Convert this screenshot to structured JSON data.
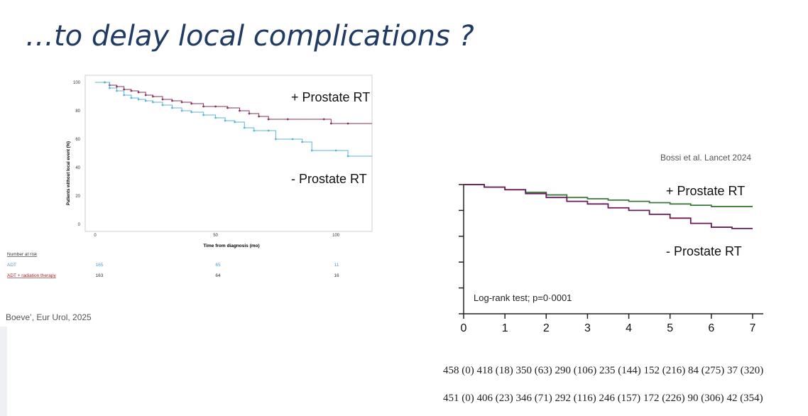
{
  "slide": {
    "title": "…to delay local complications ?",
    "left_citation": "Boeve’, Eur Urol, 2025",
    "right_citation": "Bossi et al. Lancet 2024"
  },
  "chart_data": [
    {
      "type": "line",
      "ylabel": "Patients without local event (%)",
      "xlabel": "Time from diagnosis (mo)",
      "xlim": [
        0,
        115
      ],
      "ylim": [
        0,
        100
      ],
      "x_ticks": [
        "0",
        "50",
        "100"
      ],
      "y_ticks": [
        "0",
        "20",
        "40",
        "60",
        "80",
        "100"
      ],
      "annotations": [
        "+ Prostate RT",
        "- Prostate RT"
      ],
      "series": [
        {
          "name": "ADT + radiation therapy",
          "color": "#8b2f5a",
          "points": [
            [
              0,
              100
            ],
            [
              4,
              100
            ],
            [
              6,
              98
            ],
            [
              9,
              97
            ],
            [
              12,
              95
            ],
            [
              15,
              94
            ],
            [
              18,
              93
            ],
            [
              21,
              91
            ],
            [
              24,
              90
            ],
            [
              28,
              88
            ],
            [
              32,
              87
            ],
            [
              36,
              86
            ],
            [
              40,
              85
            ],
            [
              45,
              83
            ],
            [
              50,
              83
            ],
            [
              55,
              82
            ],
            [
              60,
              80
            ],
            [
              64,
              78
            ],
            [
              68,
              76
            ],
            [
              72,
              74
            ],
            [
              80,
              74
            ],
            [
              95,
              74
            ],
            [
              98,
              71
            ],
            [
              105,
              71
            ],
            [
              115,
              71
            ]
          ]
        },
        {
          "name": "ADT",
          "color": "#5ab4d8",
          "points": [
            [
              0,
              100
            ],
            [
              4,
              100
            ],
            [
              6,
              96
            ],
            [
              9,
              94
            ],
            [
              12,
              91
            ],
            [
              15,
              89
            ],
            [
              18,
              88
            ],
            [
              21,
              87
            ],
            [
              24,
              86
            ],
            [
              28,
              84
            ],
            [
              32,
              82
            ],
            [
              36,
              80
            ],
            [
              40,
              79
            ],
            [
              45,
              77
            ],
            [
              50,
              75
            ],
            [
              54,
              73
            ],
            [
              58,
              72
            ],
            [
              62,
              68
            ],
            [
              66,
              66
            ],
            [
              72,
              66
            ],
            [
              75,
              60
            ],
            [
              82,
              60
            ],
            [
              86,
              58
            ],
            [
              90,
              52
            ],
            [
              100,
              52
            ],
            [
              105,
              48
            ],
            [
              115,
              48
            ]
          ]
        }
      ],
      "number_at_risk": {
        "label": "Number at risk",
        "rows": [
          {
            "name": "ADT",
            "values": [
              "165",
              "65",
              "11"
            ]
          },
          {
            "name": "ADT + radiation therapy",
            "values": [
              "163",
              "64",
              "16"
            ]
          }
        ]
      }
    },
    {
      "type": "line",
      "xlim": [
        0,
        7
      ],
      "ylim": [
        0,
        100
      ],
      "x_ticks": [
        "0",
        "1",
        "2",
        "3",
        "4",
        "5",
        "6",
        "7"
      ],
      "annotations": [
        "+ Prostate RT",
        "- Prostate RT",
        "Log-rank test; p=0·0001"
      ],
      "series": [
        {
          "name": "+ Prostate RT",
          "color": "#3b7a3b",
          "points": [
            [
              0,
              100
            ],
            [
              0.5,
              98
            ],
            [
              1,
              96
            ],
            [
              1.5,
              94
            ],
            [
              2,
              92
            ],
            [
              2.5,
              90
            ],
            [
              3,
              89
            ],
            [
              3.5,
              88
            ],
            [
              4,
              87
            ],
            [
              4.5,
              86
            ],
            [
              5,
              85
            ],
            [
              5.5,
              84
            ],
            [
              6,
              83
            ],
            [
              6.5,
              83
            ],
            [
              7,
              83
            ]
          ]
        },
        {
          "name": "- Prostate RT",
          "color": "#6b1a5a",
          "points": [
            [
              0,
              100
            ],
            [
              0.5,
              98
            ],
            [
              1,
              96
            ],
            [
              1.5,
              93
            ],
            [
              2,
              90
            ],
            [
              2.5,
              87
            ],
            [
              3,
              85
            ],
            [
              3.5,
              82
            ],
            [
              4,
              80
            ],
            [
              4.5,
              77
            ],
            [
              5,
              74
            ],
            [
              5.5,
              70
            ],
            [
              6,
              67
            ],
            [
              6.5,
              66
            ],
            [
              7,
              66
            ]
          ]
        }
      ],
      "number_at_risk": {
        "rows": [
          {
            "values": [
              "458 (0)",
              "418 (18)",
              "350 (63)",
              "290 (106)",
              "235 (144)",
              "152 (216)",
              "84 (275)",
              "37 (320)"
            ]
          },
          {
            "values": [
              "451 (0)",
              "406 (23)",
              "346 (71)",
              "292 (116)",
              "246 (157)",
              "172 (226)",
              "90 (306)",
              "42 (354)"
            ]
          }
        ]
      }
    }
  ]
}
